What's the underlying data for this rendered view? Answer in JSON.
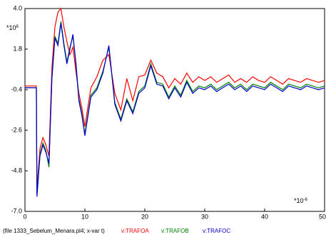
{
  "chart_data": {
    "type": "line",
    "file_label": "(file 1333_Sebelum_Menara.pl4; x-var t)",
    "y_unit": {
      "base": "*10",
      "exponent": "6"
    },
    "x_unit": {
      "base": "*10",
      "exponent": "-6"
    },
    "xlim": [
      0,
      50
    ],
    "ylim": [
      -7,
      4
    ],
    "xticks": [
      0,
      10,
      20,
      30,
      40,
      50
    ],
    "yticks": [
      {
        "value": 4,
        "label": "4.0"
      },
      1.8,
      -0.4,
      -2.6,
      -4.8,
      {
        "value": -7,
        "label": "-7.0"
      }
    ],
    "x": [
      0,
      1.9,
      2,
      2.5,
      3,
      3.5,
      4,
      4.5,
      5,
      5.5,
      6,
      6.5,
      7,
      7.5,
      8,
      8.5,
      9,
      9.5,
      10,
      11,
      12,
      13,
      14,
      15,
      16,
      17,
      18,
      19,
      20,
      21,
      22,
      23,
      24,
      25,
      26,
      27,
      28,
      29,
      30,
      31,
      32,
      33,
      34,
      35,
      36,
      37,
      38,
      39,
      40,
      41,
      42,
      43,
      44,
      45,
      46,
      47,
      48,
      49,
      50
    ],
    "series": [
      {
        "name": "v:TRAFOA",
        "color": "#ff0000",
        "values": [
          -0.2,
          -0.2,
          -5.8,
          -3.6,
          -3.0,
          -3.4,
          -4.0,
          0.8,
          3.0,
          3.8,
          4.0,
          3.0,
          2.2,
          1.5,
          1.9,
          0.6,
          -0.6,
          -1.4,
          -2.4,
          -0.3,
          0.3,
          1.2,
          1.5,
          -0.6,
          -1.5,
          0.2,
          -1.0,
          0.3,
          0.4,
          1.2,
          0.5,
          0.3,
          -0.3,
          0.2,
          -0.1,
          0.5,
          0.0,
          0.3,
          0.1,
          0.3,
          0.0,
          0.2,
          0.4,
          0.0,
          0.2,
          0.0,
          0.3,
          0.1,
          0.0,
          0.3,
          0.1,
          -0.1,
          0.2,
          0.1,
          0.0,
          0.2,
          0.1,
          0.0,
          0.1
        ]
      },
      {
        "name": "v:TRAFOB",
        "color": "#008000",
        "values": [
          -0.3,
          -0.3,
          -6.1,
          -3.9,
          -3.3,
          -3.7,
          -4.6,
          0.3,
          2.5,
          2.1,
          3.3,
          2.1,
          1.1,
          1.9,
          2.5,
          1.1,
          -0.9,
          -1.7,
          -2.8,
          -0.7,
          -0.3,
          0.6,
          1.9,
          -1.1,
          -2.0,
          -0.9,
          -1.6,
          -0.5,
          -0.2,
          1.0,
          0.0,
          -0.1,
          -0.8,
          -0.2,
          -0.7,
          0.1,
          -0.5,
          -0.2,
          -0.3,
          -0.1,
          -0.4,
          -0.2,
          0.0,
          -0.3,
          -0.1,
          -0.4,
          -0.1,
          -0.2,
          -0.3,
          0.0,
          -0.2,
          -0.4,
          -0.1,
          -0.2,
          -0.3,
          -0.1,
          -0.2,
          -0.3,
          -0.2
        ]
      },
      {
        "name": "v:TRAFOC",
        "color": "#0000cc",
        "values": [
          -0.3,
          -0.3,
          -6.2,
          -4.0,
          -3.4,
          -3.8,
          -4.4,
          0.2,
          2.4,
          2.0,
          3.2,
          2.0,
          1.0,
          1.8,
          2.6,
          1.0,
          -1.0,
          -1.8,
          -2.9,
          -0.8,
          -0.4,
          0.5,
          2.0,
          -1.2,
          -2.1,
          -1.0,
          -1.7,
          -0.6,
          -0.3,
          0.9,
          -0.1,
          -0.2,
          -0.9,
          -0.3,
          -0.8,
          0.0,
          -0.6,
          -0.3,
          -0.4,
          -0.2,
          -0.5,
          -0.3,
          -0.1,
          -0.4,
          -0.2,
          -0.5,
          -0.2,
          -0.3,
          -0.4,
          -0.1,
          -0.3,
          -0.5,
          -0.2,
          -0.3,
          -0.4,
          -0.2,
          -0.3,
          -0.4,
          -0.3
        ]
      }
    ]
  }
}
